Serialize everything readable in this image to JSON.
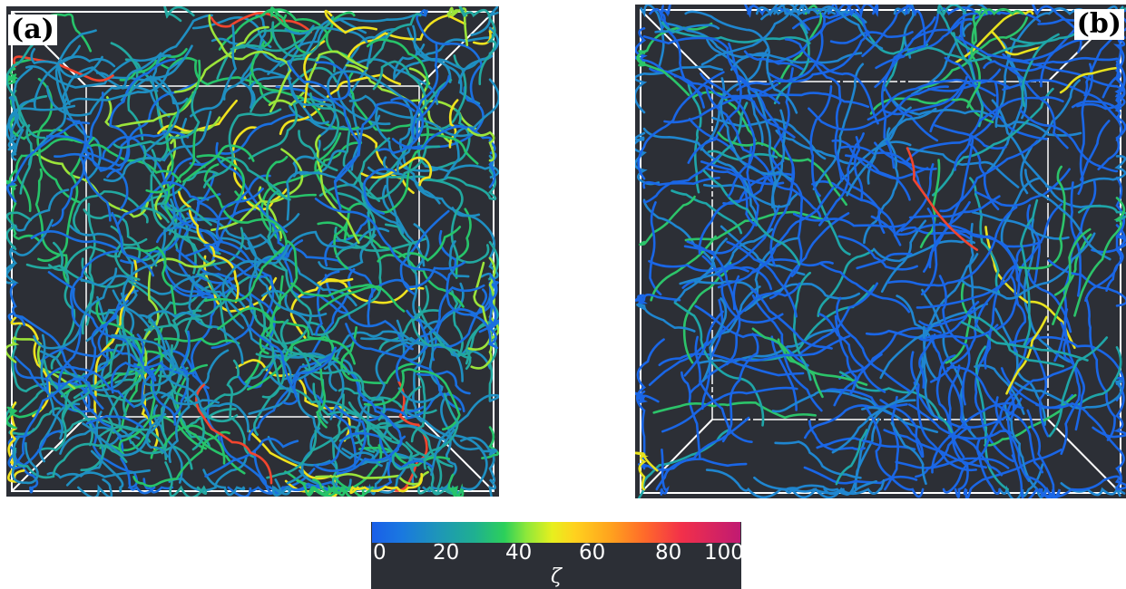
{
  "panels": [
    {
      "label": "(a)"
    },
    {
      "label": "(b)"
    }
  ],
  "colorbar": {
    "title": "ζ",
    "ticks": [
      "0",
      "20",
      "40",
      "60",
      "80",
      "100"
    ],
    "range": [
      0,
      100
    ]
  },
  "colors": {
    "background": "#2c2f36",
    "frame": "#ffffff",
    "colormap": [
      "#1a5fe8",
      "#1fb090",
      "#2cd05a",
      "#e8ef1e",
      "#ffa11e",
      "#f2304a",
      "#c01a72"
    ]
  }
}
